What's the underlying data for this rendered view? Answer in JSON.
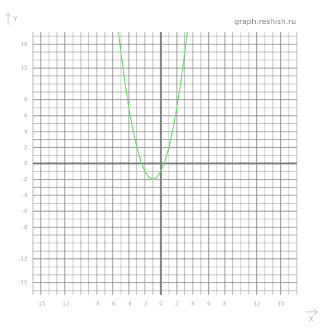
{
  "chart_data": {
    "type": "line",
    "watermark": "graph.reshish.ru",
    "x_label": "X",
    "y_label": "Y",
    "x": [
      -5.3,
      -5,
      -4.5,
      -4,
      -3.5,
      -3,
      -2.5,
      -2,
      -1.5,
      -1,
      -0.5,
      0,
      0.5,
      1,
      1.5,
      2,
      2.5,
      3,
      3.3
    ],
    "series": [
      {
        "color": "#66dd66",
        "values": [
          16.49,
          14,
          10.25,
          7,
          4.25,
          2,
          0.25,
          -1,
          -1.75,
          -2,
          -1.75,
          -1,
          0.25,
          2,
          4.25,
          7,
          10.25,
          14,
          16.49
        ]
      }
    ],
    "xlim": [
      -16,
      17
    ],
    "ylim": [
      -16.5,
      16.5
    ],
    "xticks": [
      -15,
      -12,
      -8,
      -6,
      -4,
      -2,
      0,
      2,
      4,
      6,
      8,
      12,
      15
    ],
    "yticks": [
      -15,
      -12,
      -8,
      -6,
      -4,
      -2,
      0,
      2,
      4,
      6,
      8,
      12,
      15
    ],
    "grid": true
  }
}
